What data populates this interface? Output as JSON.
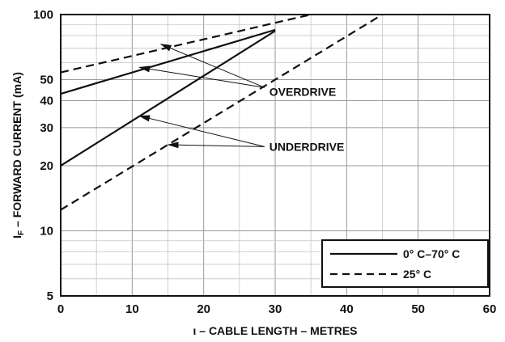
{
  "chart_data": {
    "type": "line",
    "xlabel": "ι – CABLE LENGTH – METRES",
    "ylabel": "IF – FORWARD CURRENT (mA)",
    "ylabel_main": "I",
    "ylabel_sub": "F",
    "ylabel_rest": " – FORWARD CURRENT (mA)",
    "xlim": [
      0,
      60
    ],
    "ylim": [
      5,
      100
    ],
    "yscale": "log",
    "grid": true,
    "x_ticks": [
      0,
      10,
      20,
      30,
      40,
      50,
      60
    ],
    "x_tick_labels": [
      "0",
      "10",
      "20",
      "30",
      "40",
      "50",
      "60"
    ],
    "y_ticks": [
      5,
      10,
      20,
      30,
      40,
      50,
      100
    ],
    "y_tick_labels": [
      "5",
      "10",
      "20",
      "30",
      "40",
      "50",
      "100"
    ],
    "series": [
      {
        "name": "0° C–70° C",
        "style": "solid",
        "label": "OVERDRIVE",
        "x": [
          0,
          30
        ],
        "y": [
          43,
          85
        ]
      },
      {
        "name": "0° C–70° C",
        "style": "solid",
        "label": "UNDERDRIVE",
        "x": [
          0,
          30
        ],
        "y": [
          20,
          84
        ]
      },
      {
        "name": "25° C",
        "style": "dashed",
        "label": "OVERDRIVE",
        "x": [
          0,
          35
        ],
        "y": [
          54,
          100
        ]
      },
      {
        "name": "25° C",
        "style": "dashed",
        "label": "UNDERDRIVE",
        "x": [
          0,
          45
        ],
        "y": [
          12.5,
          100
        ]
      }
    ],
    "annotations": [
      {
        "text": "OVERDRIVE",
        "at": [
          28.5,
          44
        ]
      },
      {
        "text": "UNDERDRIVE",
        "at": [
          28.5,
          24.5
        ]
      }
    ],
    "arrows": [
      {
        "from": [
          28.5,
          46
        ],
        "to": [
          14,
          73
        ]
      },
      {
        "from": [
          28.5,
          46
        ],
        "to": [
          11,
          57
        ]
      },
      {
        "from": [
          28.5,
          24.5
        ],
        "to": [
          11,
          34
        ]
      },
      {
        "from": [
          28.5,
          24.5
        ],
        "to": [
          15,
          25
        ]
      }
    ],
    "legend": {
      "position": "bottom-right",
      "entries": [
        {
          "label": "0° C–70° C",
          "style": "solid"
        },
        {
          "label": "25° C",
          "style": "dashed"
        }
      ]
    }
  }
}
